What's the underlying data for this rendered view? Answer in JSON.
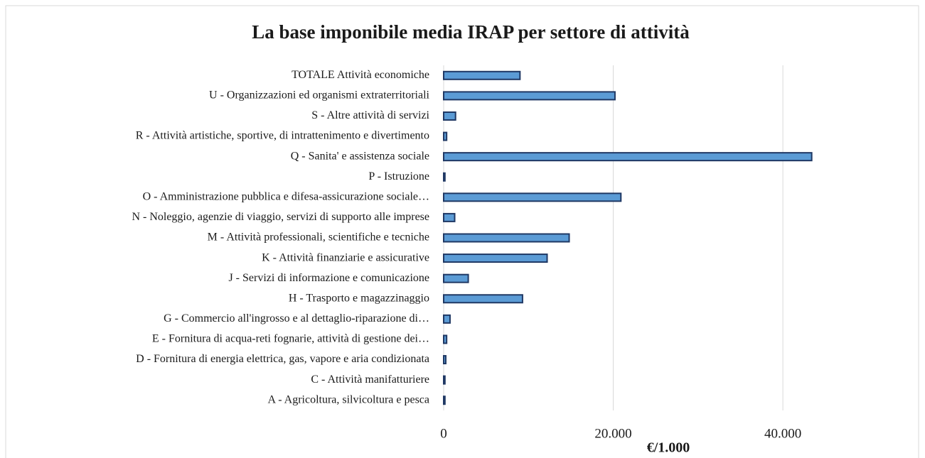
{
  "chart_data": {
    "type": "barh",
    "title": "La base imponibile media IRAP per settore di attività",
    "x_label": "€/1.000",
    "categories": [
      "TOTALE Attività economiche",
      "U - Organizzazioni ed organismi extraterritoriali",
      "S - Altre attività di servizi",
      "R - Attività artistiche, sportive, di intrattenimento e divertimento",
      "Q - Sanita' e assistenza sociale",
      "P - Istruzione",
      "O - Amministrazione pubblica e difesa-assicurazione sociale…",
      "N - Noleggio, agenzie di viaggio, servizi di supporto alle imprese",
      "M - Attività professionali, scientifiche e tecniche",
      "K - Attività finanziarie e assicurative",
      "J - Servizi di informazione e comunicazione",
      "H - Trasporto e magazzinaggio",
      "G - Commercio all'ingrosso e al dettaglio-riparazione di…",
      "E - Fornitura di acqua-reti fognarie, attività di gestione dei…",
      "D - Fornitura di energia elettrica, gas, vapore e aria condizionata",
      "C - Attività manifatturiere",
      "A - Agricoltura, silvicoltura e pesca"
    ],
    "values": [
      9000,
      20200,
      1400,
      350,
      43400,
      150,
      20900,
      1300,
      14800,
      12200,
      2900,
      9300,
      750,
      350,
      250,
      150,
      150
    ],
    "color": "#5b9bd5",
    "edge_color": "#1f3864",
    "xlim": [
      0,
      55000
    ],
    "xticks": [
      0,
      {
        "value": 20000,
        "label": "20.000"
      },
      {
        "value": 40000,
        "label": "40.000"
      }
    ],
    "grid": true
  }
}
